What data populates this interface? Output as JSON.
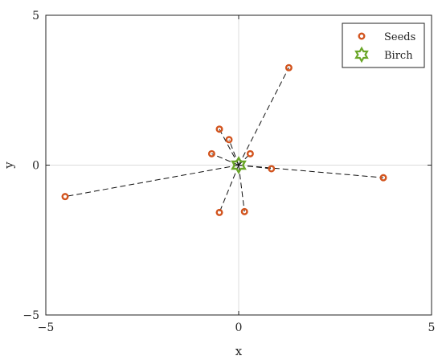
{
  "chart_data": {
    "type": "scatter",
    "title": "",
    "xlabel": "x",
    "ylabel": "y",
    "xlim": [
      -5,
      5
    ],
    "ylim": [
      -5,
      5
    ],
    "xticks": [
      "−5",
      "0",
      "5"
    ],
    "yticks": [
      "−5",
      "0",
      "5"
    ],
    "grid": "zero-lines",
    "legend_position": "top-right",
    "series": [
      {
        "name": "Seeds",
        "color": "#d2541e",
        "marker": "circle",
        "points": [
          {
            "x": 1.3,
            "y": 3.25
          },
          {
            "x": -0.5,
            "y": 1.2
          },
          {
            "x": -0.25,
            "y": 0.85
          },
          {
            "x": -0.7,
            "y": 0.38
          },
          {
            "x": 0.3,
            "y": 0.38
          },
          {
            "x": 0.85,
            "y": -0.12
          },
          {
            "x": 3.75,
            "y": -0.42
          },
          {
            "x": -4.5,
            "y": -1.05
          },
          {
            "x": -0.5,
            "y": -1.58
          },
          {
            "x": 0.15,
            "y": -1.55
          }
        ]
      },
      {
        "name": "Birch",
        "color": "#6aa628",
        "marker": "hexagram",
        "points": [
          {
            "x": 0.0,
            "y": 0.0
          }
        ]
      }
    ],
    "connections": "each seed linked to birch by a dashed line"
  }
}
